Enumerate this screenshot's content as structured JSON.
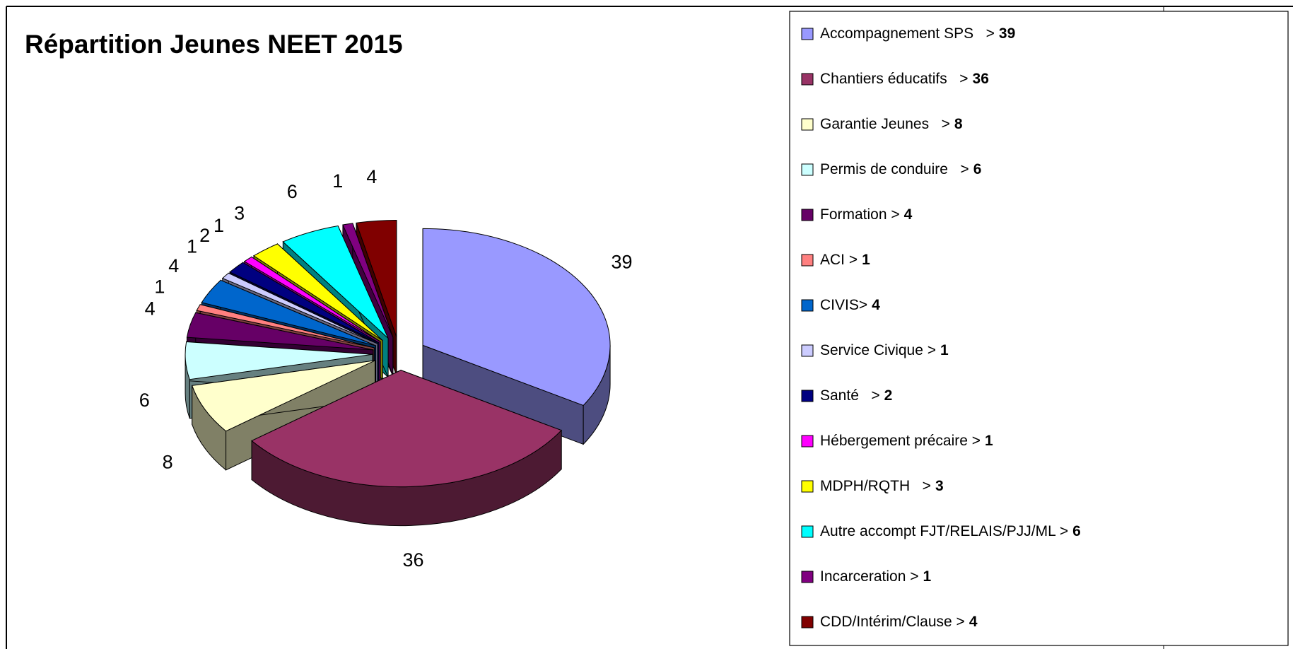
{
  "chart_data": {
    "type": "pie3d",
    "title": "Répartition Jeunes NEET 2015",
    "categories": [
      "Accompagnement SPS   >",
      "Chantiers éducatifs   >",
      "Garantie Jeunes   >",
      "Permis de conduire   >",
      "Formation >",
      "ACI >",
      "CIVIS>",
      "Service Civique >",
      "Santé   >",
      "Hébergement précaire >",
      "MDPH/RQTH   >",
      "Autre accompt FJT/RELAIS/PJJ/ML >",
      "Incarceration >",
      "CDD/Intérim/Clause >"
    ],
    "values": [
      39,
      36,
      8,
      6,
      4,
      1,
      4,
      1,
      2,
      1,
      3,
      6,
      1,
      4
    ],
    "colors": [
      "#9999ff",
      "#993366",
      "#ffffcc",
      "#ccffff",
      "#660066",
      "#ff8080",
      "#0066cc",
      "#ccccff",
      "#000080",
      "#ff00ff",
      "#ffff00",
      "#00ffff",
      "#800080",
      "#800000"
    ]
  }
}
